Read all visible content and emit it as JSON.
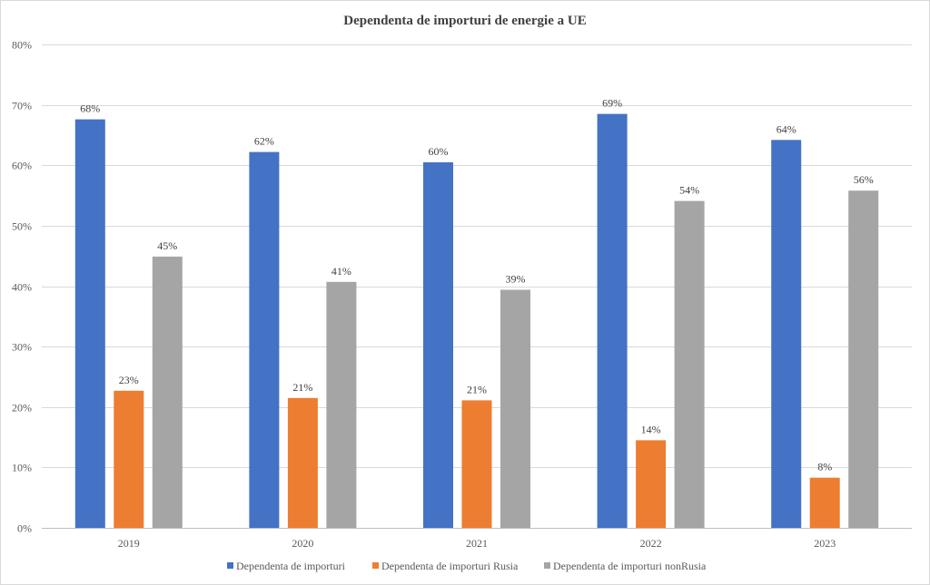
{
  "chart_data": {
    "type": "bar",
    "title": "Dependenta de importuri de energie a UE",
    "categories": [
      "2019",
      "2020",
      "2021",
      "2022",
      "2023"
    ],
    "series": [
      {
        "name": "Dependenta de importuri",
        "color": "#4472c4",
        "values": [
          0.676,
          0.622,
          0.605,
          0.685,
          0.642
        ],
        "labels": [
          "68%",
          "62%",
          "60%",
          "69%",
          "64%"
        ]
      },
      {
        "name": "Dependenta de importuri Rusia",
        "color": "#ed7d31",
        "values": [
          0.227,
          0.215,
          0.211,
          0.145,
          0.083
        ],
        "labels": [
          "23%",
          "21%",
          "21%",
          "14%",
          "8%"
        ]
      },
      {
        "name": "Dependenta de importuri nonRusia",
        "color": "#a5a5a5",
        "values": [
          0.449,
          0.407,
          0.394,
          0.541,
          0.558
        ],
        "labels": [
          "45%",
          "41%",
          "39%",
          "54%",
          "56%"
        ]
      }
    ],
    "ylim": [
      0,
      0.8
    ],
    "yticks": [
      "0%",
      "10%",
      "20%",
      "30%",
      "40%",
      "50%",
      "60%",
      "70%",
      "80%"
    ],
    "xlabel": "",
    "ylabel": "",
    "grid": true,
    "legend": "bottom"
  }
}
